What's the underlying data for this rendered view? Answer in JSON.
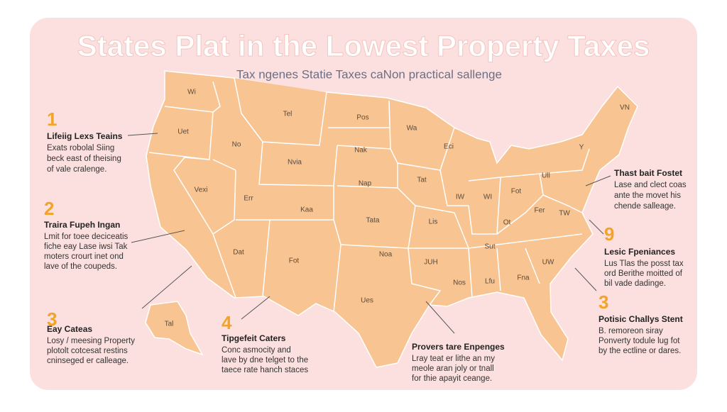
{
  "title": "States Plat in the Lowest Property Taxes",
  "subtitle": "Tax ngenes Statie Taxes caNon practical sallenge",
  "map_labels": [
    "Wi",
    "Uet",
    "No",
    "Tel",
    "Pos",
    "Wa",
    "Eci",
    "Nvia",
    "Nak",
    "Vexi",
    "Err",
    "Kaa",
    "Nap",
    "Tat",
    "IW",
    "WI",
    "Fot",
    "Ull",
    "Y",
    "VN",
    "Fer",
    "TW",
    "Ot",
    "Tata",
    "Lis",
    "Dat",
    "Fot",
    "Noa",
    "JUH",
    "Sut",
    "UW",
    "Nos",
    "Lfu",
    "Fna",
    "Ues",
    "Tal"
  ],
  "notes": [
    {
      "number": "1",
      "heading": "Lifeiig Lexs Teains",
      "lines": [
        "Exats robolal Siing",
        "beck east of theising",
        "of vale cralenge."
      ]
    },
    {
      "number": "2",
      "heading": "Traira Fupeh Ingan",
      "lines": [
        "Lmit for toee deciceatis",
        "fiche eay Lase iwsi Tak",
        "moters crourt inet ond",
        "lave of the coupeds."
      ]
    },
    {
      "number": "3",
      "heading": "Eay Cateas",
      "lines": [
        "Losy / meesing Property",
        "plotolt cotcesat restins",
        "cninseged er calleage."
      ]
    },
    {
      "number": "4",
      "heading": "Tipgefeit Caters",
      "lines": [
        "Conc asmocity and",
        "lave by dne telget to the",
        "taece rate hanch staces"
      ]
    },
    {
      "heading": "Provers tare Enpenges",
      "lines": [
        "Lray teat er lithe an my",
        "meole aran joly or tnall",
        "for thie apayit ceange."
      ]
    },
    {
      "heading": "Thast bait Fostet",
      "lines": [
        "Lase and clect coas",
        "ante the movet his",
        "chende salleage."
      ]
    },
    {
      "number": "9",
      "heading": "Lesic Fpeniances",
      "lines": [
        "Lus Tlas the posst tax",
        "ord Berithe moitted of",
        "bil vade dadinge."
      ]
    },
    {
      "number": "3",
      "heading": "Potisic Challys Stent",
      "lines": [
        "B. remoreon siray",
        "Ponverty todule lug fot",
        "by the ectline or dares."
      ]
    }
  ]
}
